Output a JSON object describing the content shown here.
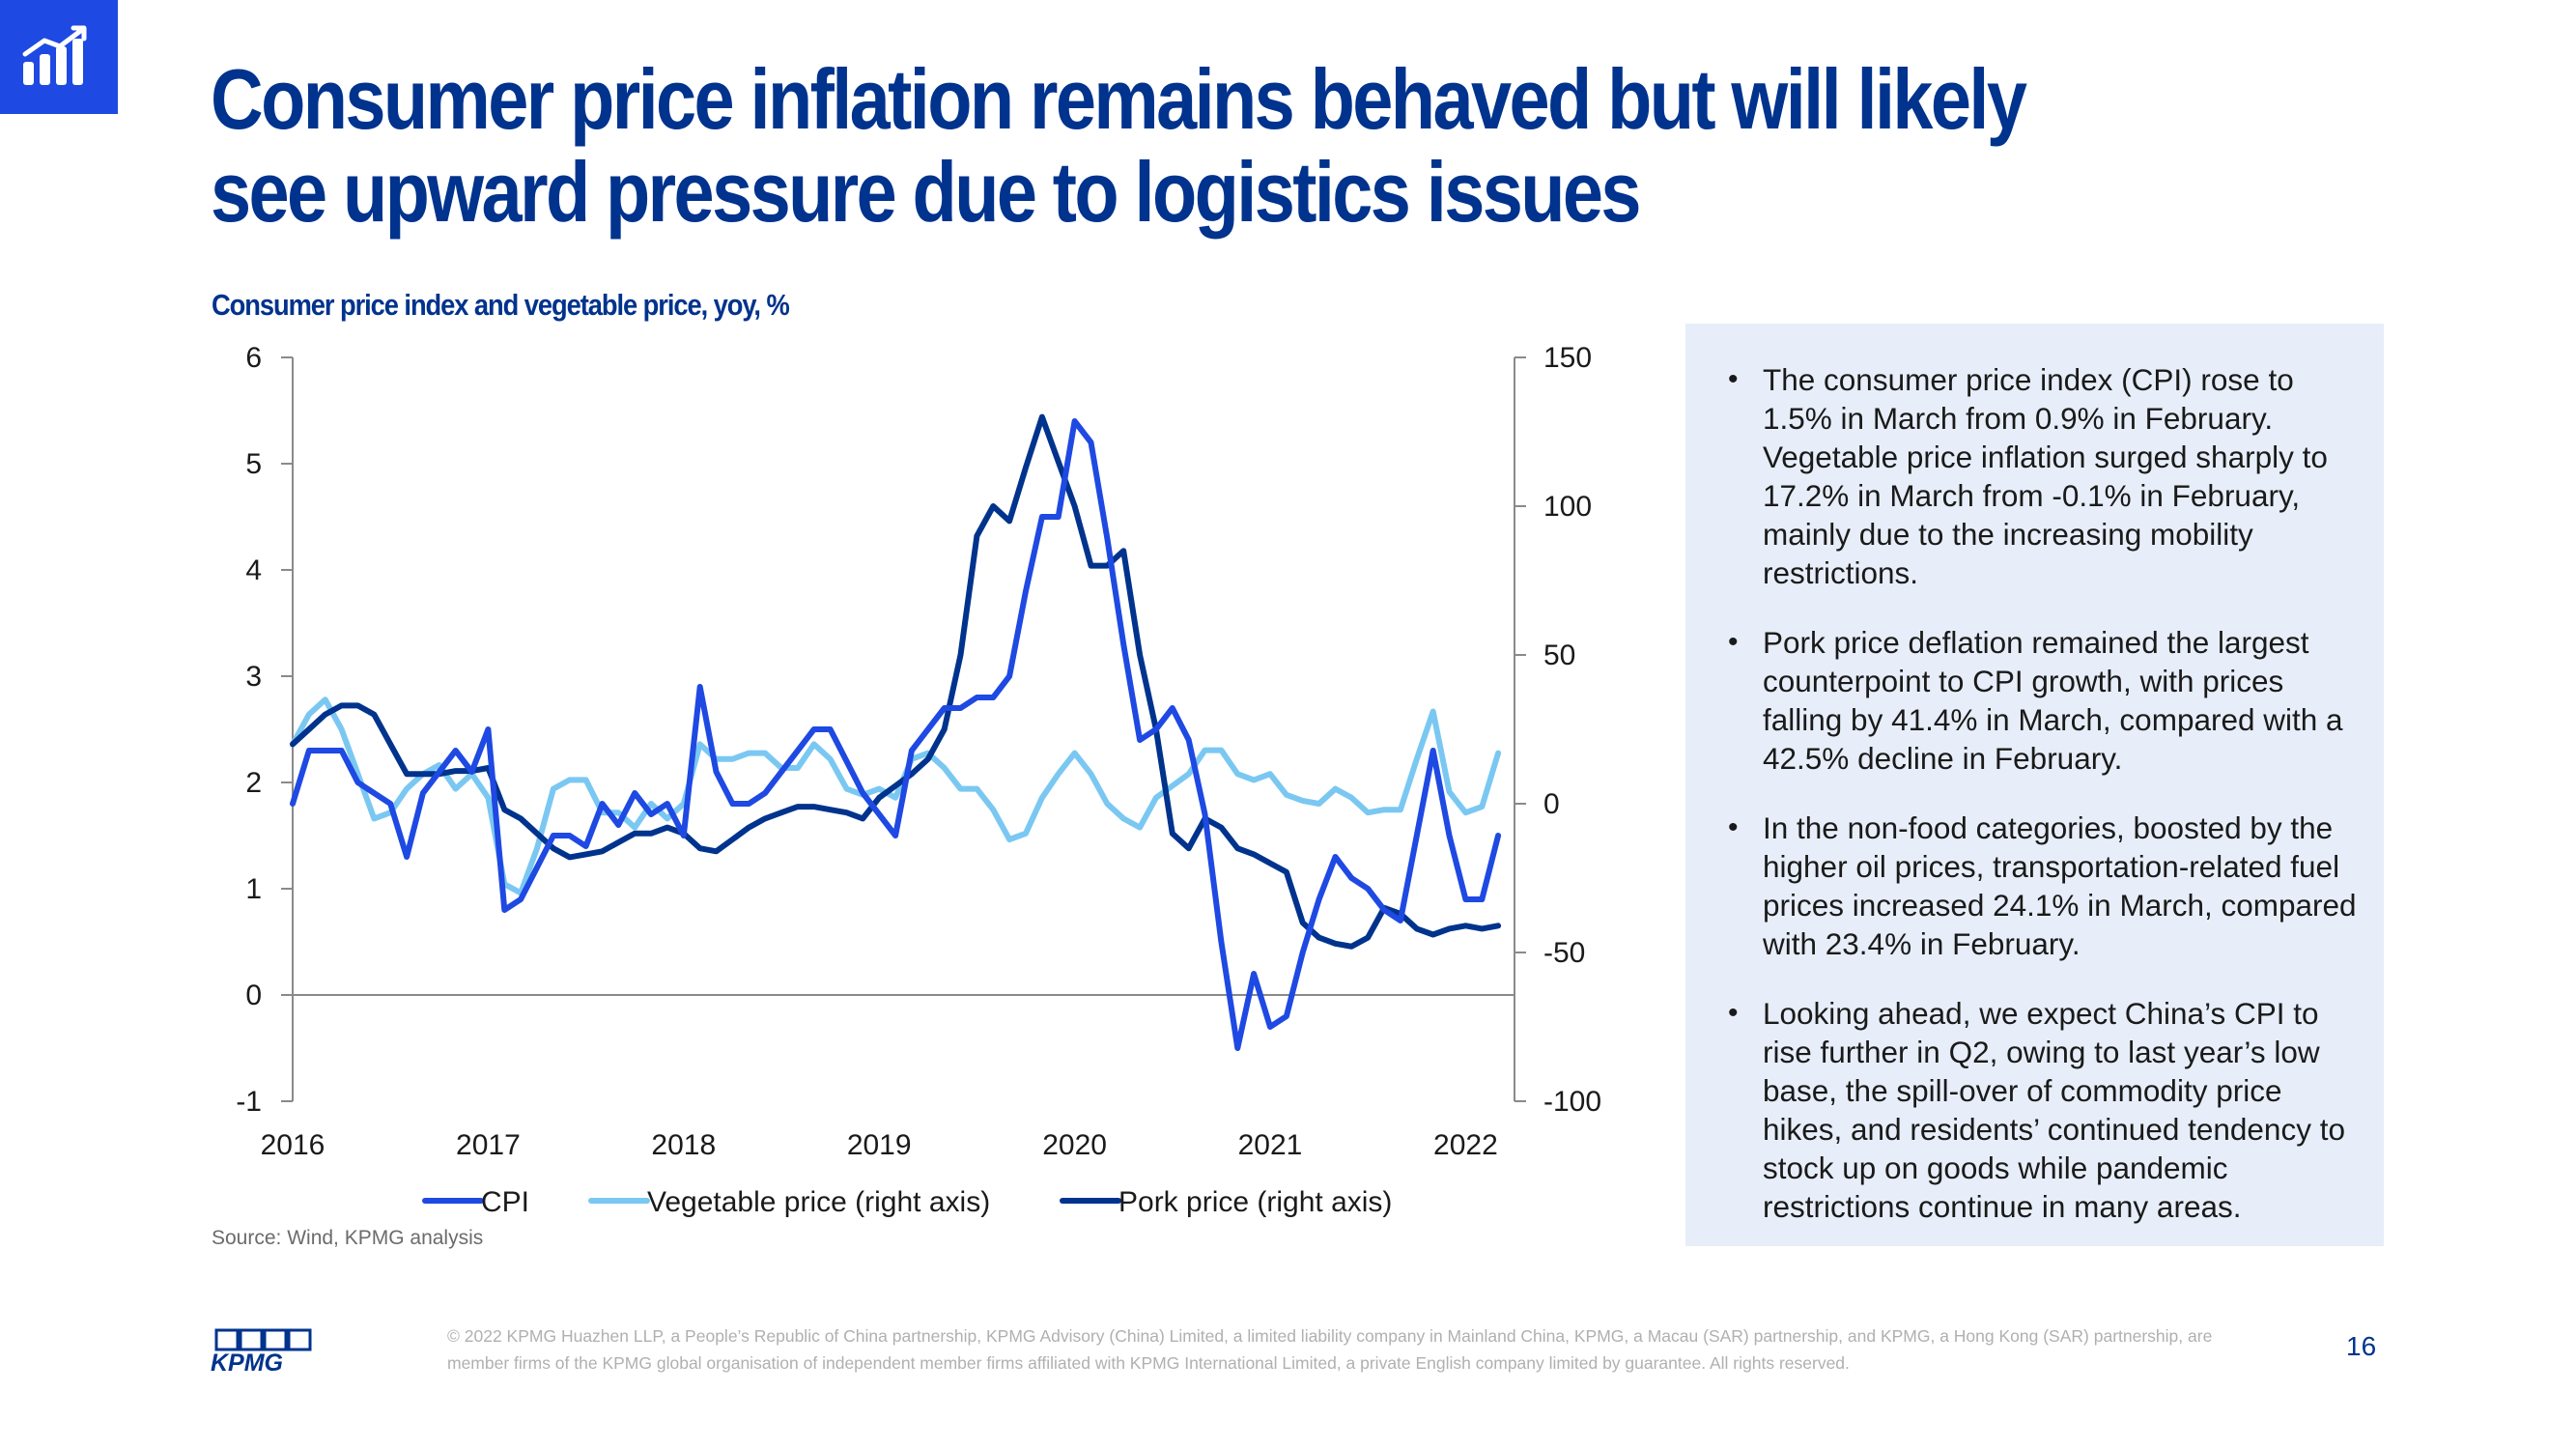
{
  "header": {
    "title": "Consumer price inflation remains behaved but will likely see upward pressure due to logistics issues",
    "badge_icon": "bar-chart-growth-icon"
  },
  "chart_subtitle": "Consumer price index and vegetable price, yoy, %",
  "chart_data": {
    "type": "line",
    "title": "Consumer price index and vegetable price, yoy, %",
    "x_labels": [
      "2016",
      "2017",
      "2018",
      "2019",
      "2020",
      "2021",
      "2022"
    ],
    "x_start": 2016.0,
    "x_end": 2022.25,
    "y_left": {
      "min": -1,
      "max": 6,
      "ticks": [
        "6",
        "5",
        "4",
        "3",
        "2",
        "1",
        "0",
        "-1"
      ]
    },
    "y_right": {
      "min": -100,
      "max": 150,
      "ticks": [
        "150",
        "100",
        "50",
        "0",
        "-50",
        "-100"
      ]
    },
    "legend_position": "bottom",
    "series": [
      {
        "name": "CPI",
        "axis": "left",
        "color": "#1E49E2",
        "start": 2016.0,
        "values": [
          1.8,
          2.3,
          2.3,
          2.3,
          2.0,
          1.9,
          1.8,
          1.3,
          1.9,
          2.1,
          2.3,
          2.1,
          2.5,
          0.8,
          0.9,
          1.2,
          1.5,
          1.5,
          1.4,
          1.8,
          1.6,
          1.9,
          1.7,
          1.8,
          1.5,
          2.9,
          2.1,
          1.8,
          1.8,
          1.9,
          2.1,
          2.3,
          2.5,
          2.5,
          2.2,
          1.9,
          1.7,
          1.5,
          2.3,
          2.5,
          2.7,
          2.7,
          2.8,
          2.8,
          3.0,
          3.8,
          4.5,
          4.5,
          5.4,
          5.2,
          4.3,
          3.3,
          2.4,
          2.5,
          2.7,
          2.4,
          1.7,
          0.5,
          -0.5,
          0.2,
          -0.3,
          -0.2,
          0.4,
          0.9,
          1.3,
          1.1,
          1.0,
          0.8,
          0.7,
          1.5,
          2.3,
          1.5,
          0.9,
          0.9,
          1.5
        ]
      },
      {
        "name": "Vegetable price (right axis)",
        "axis": "right",
        "color": "#7AC8F2",
        "start": 2016.0,
        "values": [
          20,
          30,
          35,
          25,
          10,
          -5,
          -3,
          5,
          10,
          13,
          5,
          10,
          2,
          -27,
          -30,
          -15,
          5,
          8,
          8,
          -3,
          -3,
          -8,
          0,
          -5,
          0,
          20,
          15,
          15,
          17,
          17,
          12,
          12,
          20,
          15,
          5,
          3,
          5,
          2,
          15,
          17,
          12,
          5,
          5,
          -2,
          -12,
          -10,
          2,
          10,
          17,
          10,
          0,
          -5,
          -8,
          2,
          6,
          10,
          18,
          18,
          10,
          8,
          10,
          3,
          1,
          0,
          5,
          2,
          -3,
          -2,
          -2,
          15,
          31,
          4,
          -3,
          -1,
          17
        ]
      },
      {
        "name": "Pork price (right axis)",
        "axis": "right",
        "color": "#00338D",
        "start": 2016.0,
        "values": [
          20,
          25,
          30,
          33,
          33,
          30,
          20,
          10,
          10,
          10,
          11,
          11,
          12,
          -2,
          -5,
          -10,
          -15,
          -18,
          -17,
          -16,
          -13,
          -10,
          -10,
          -8,
          -10,
          -15,
          -16,
          -12,
          -8,
          -5,
          -3,
          -1,
          -1,
          -2,
          -3,
          -5,
          2,
          6,
          10,
          15,
          25,
          50,
          90,
          100,
          95,
          113,
          130,
          115,
          100,
          80,
          80,
          85,
          50,
          25,
          -10,
          -15,
          -5,
          -8,
          -15,
          -17,
          -20,
          -23,
          -40,
          -45,
          -47,
          -48,
          -45,
          -35,
          -37,
          -42,
          -44,
          -42,
          -41,
          -42,
          -41
        ]
      }
    ]
  },
  "source": "Source: Wind, KPMG analysis",
  "side_panel": {
    "bullets": [
      "The consumer price index (CPI) rose to 1.5% in March from 0.9% in February. Vegetable price inflation surged sharply to 17.2% in March from -0.1% in February, mainly due to the increasing mobility restrictions.",
      "Pork price deflation remained the largest counterpoint to CPI growth, with prices falling by 41.4% in March, compared with a 42.5% decline in February.",
      "In the non-food categories, boosted by the higher oil prices, transportation-related fuel prices increased 24.1% in March, compared with 23.4% in February.",
      "Looking ahead, we expect China’s CPI to rise further in Q2, owing to last year’s low base, the spill-over of commodity price hikes, and residents’ continued tendency to stock up on goods while pandemic restrictions continue in many areas."
    ]
  },
  "footer": {
    "logo_text": "KPMG",
    "legal": "© 2022 KPMG Huazhen LLP, a People’s Republic of China partnership, KPMG Advisory (China) Limited, a limited liability company in Mainland China, KPMG, a Macau (SAR) partnership, and KPMG, a Hong Kong (SAR) partnership, are member firms of the KPMG global organisation of independent member firms affiliated with KPMG International Limited, a private English company limited by guarantee. All rights reserved.",
    "page_number": "16"
  },
  "colors": {
    "brand_navy": "#00338D",
    "brand_blue": "#1E49E2",
    "panel_bg": "#E7EEF9"
  }
}
